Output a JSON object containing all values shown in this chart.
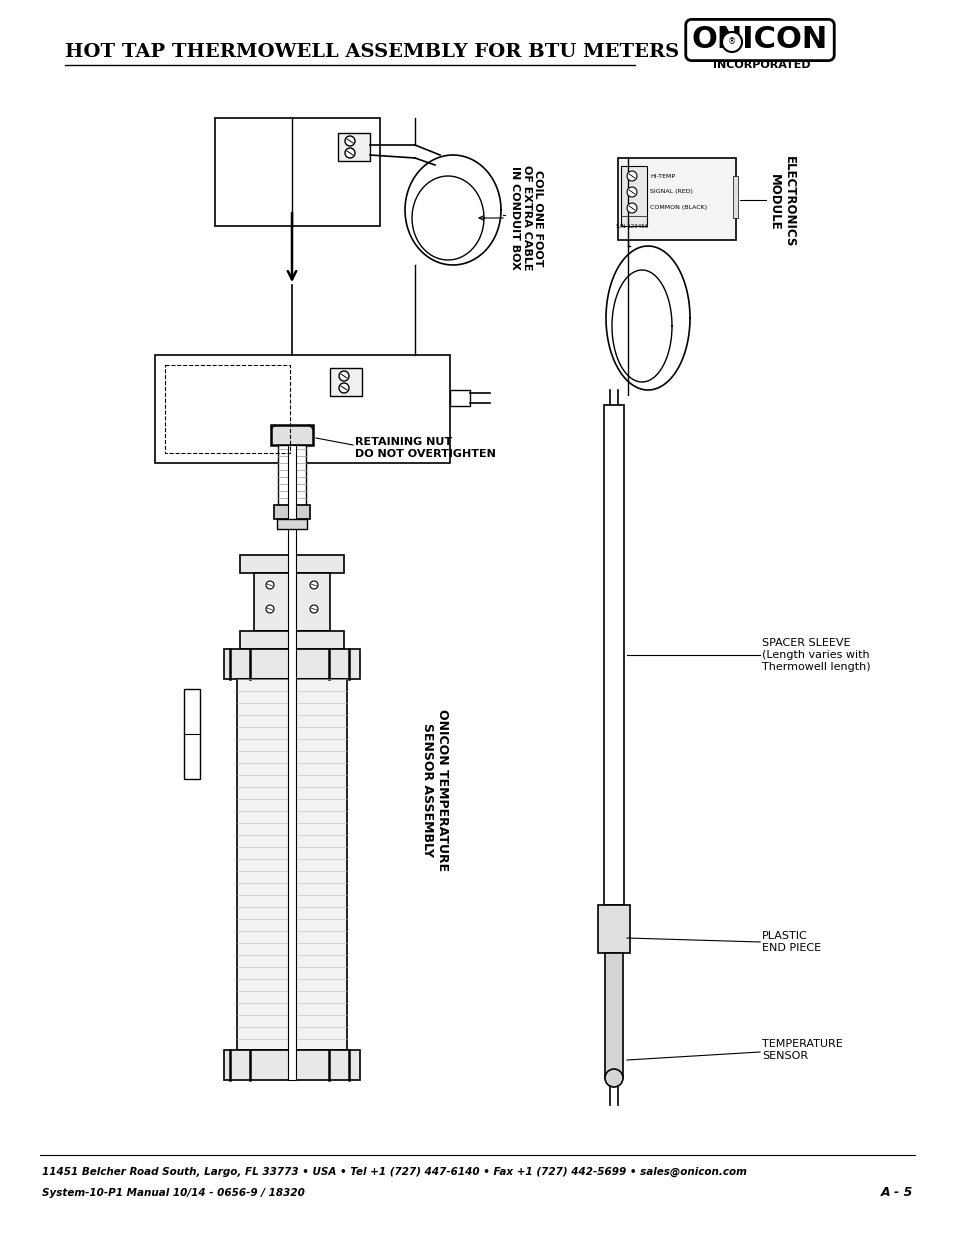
{
  "title": "HOT TAP THERMOWELL ASSEMBLY FOR BTU METERS",
  "footer_line1": "11451 Belcher Road South, Largo, FL 33773 • USA • Tel +1 (727) 447-6140 • Fax +1 (727) 442-5699 • sales@onicon.com",
  "footer_line2": "System-10-P1 Manual 10/14 - 0656-9 / 18320",
  "footer_right": "A - 5",
  "label_coil": "COIL ONE FOOT\nOF EXTRA CABLE\nIN CONDUIT BOX",
  "label_retaining": "RETAINING NUT\nDO NOT OVERTIGHTEN",
  "label_sensor_assembly": "ONICON TEMPERATURE\nSENSOR ASSEMBLY",
  "label_electronics": "ELECTRONICS\nMODULE",
  "label_spacer": "SPACER SLEEVE\n(Length varies with\nThermowell length)",
  "label_plastic": "PLASTIC\nEND PIECE",
  "label_temp_sensor": "TEMPERATURE\nSENSOR",
  "bg_color": "#ffffff",
  "line_color": "#000000",
  "gray_color": "#888888",
  "light_gray": "#cccccc"
}
